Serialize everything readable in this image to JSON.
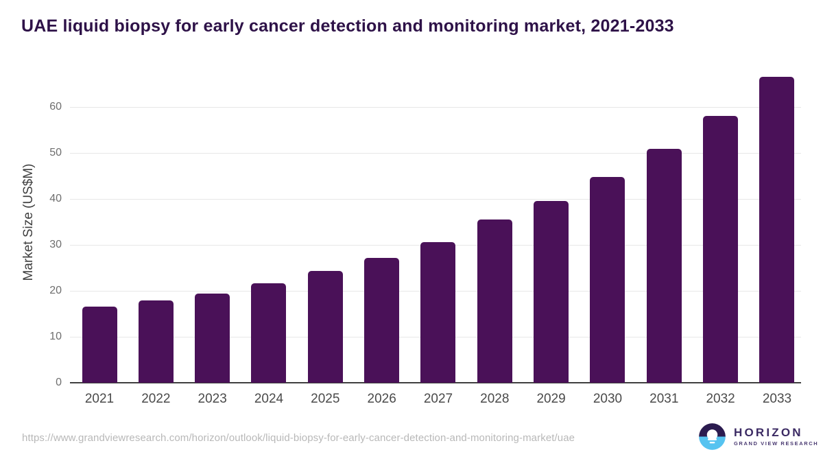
{
  "title": "UAE liquid biopsy for early cancer detection and monitoring market, 2021-2033",
  "chart_data": {
    "type": "bar",
    "title": "UAE liquid biopsy for early cancer detection and monitoring market, 2021-2033",
    "categories": [
      "2021",
      "2022",
      "2023",
      "2024",
      "2025",
      "2026",
      "2027",
      "2028",
      "2029",
      "2030",
      "2031",
      "2032",
      "2033"
    ],
    "values": [
      16.6,
      17.9,
      19.4,
      21.6,
      24.3,
      27.1,
      30.6,
      35.5,
      39.6,
      44.8,
      50.9,
      58.0,
      66.6
    ],
    "xlabel": "",
    "ylabel": "Market Size (US$M)",
    "ylim": [
      0,
      60
    ],
    "yticks": [
      0,
      10,
      20,
      30,
      40,
      50,
      60
    ],
    "grid": true,
    "legend": false,
    "bar_color": "#4a1158"
  },
  "colors": {
    "bar": "#4a1158",
    "title_text": "#2e1248",
    "axis_line": "#3f3f3f",
    "gridline": "#e7e7e7",
    "ytick_label": "#6e6e6e",
    "xtick_label": "#4a4a4a",
    "url_text": "#b8b8b8",
    "logo_navy": "#2b1b4f",
    "logo_blue": "#56c3f0"
  },
  "footer": {
    "source_url": "https://www.grandviewresearch.com/horizon/outlook/liquid-biopsy-for-early-cancer-detection-and-monitoring-market/uae",
    "logo_title": "HORIZON",
    "logo_subtitle": "GRAND VIEW RESEARCH"
  }
}
